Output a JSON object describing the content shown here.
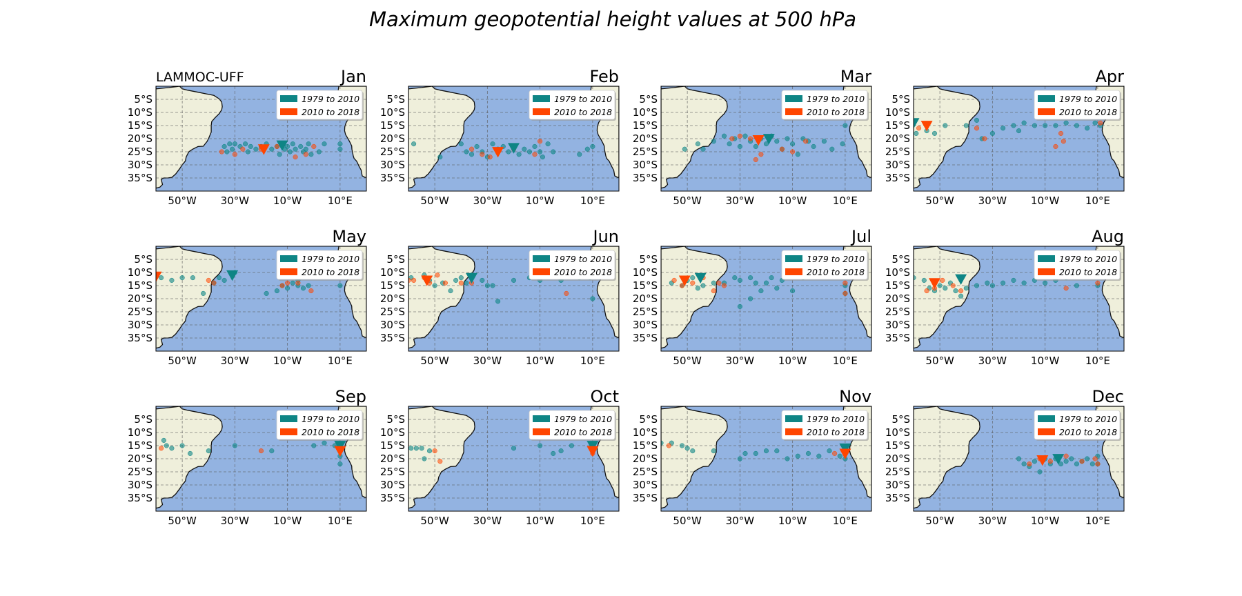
{
  "title": "Maximum geopotential height values at 500 hPa",
  "credit": "LAMMOC-UFF",
  "colors": {
    "ocean": "#93b3e1",
    "land": "#efefdb",
    "coast": "#111111",
    "grid": "#5a5a5a",
    "period1": "#0e8585",
    "period2": "#ff4500"
  },
  "legend": [
    {
      "label": "1979 to 2010",
      "color": "#0e8585"
    },
    {
      "label": "2010 to 2018",
      "color": "#ff4500"
    }
  ],
  "map_extent": {
    "lon": [
      -60,
      20
    ],
    "lat": [
      -40,
      0
    ]
  },
  "lon_ticks": [
    {
      "value": -50,
      "label": "50°W"
    },
    {
      "value": -30,
      "label": "30°W"
    },
    {
      "value": -10,
      "label": "10°W"
    },
    {
      "value": 10,
      "label": "10°E"
    }
  ],
  "lat_ticks": [
    {
      "value": -5,
      "label": "5°S"
    },
    {
      "value": -10,
      "label": "10°S"
    },
    {
      "value": -15,
      "label": "15°S"
    },
    {
      "value": -20,
      "label": "20°S"
    },
    {
      "value": -25,
      "label": "25°S"
    },
    {
      "value": -30,
      "label": "30°S"
    },
    {
      "value": -35,
      "label": "35°S"
    }
  ],
  "chart_data": [
    {
      "month": "Jan",
      "p1_points": [
        [
          -34,
          -23
        ],
        [
          -32,
          -22
        ],
        [
          -31,
          -24
        ],
        [
          -30,
          -22
        ],
        [
          -28,
          -23
        ],
        [
          -26,
          -22
        ],
        [
          -24,
          -23
        ],
        [
          -22,
          -24
        ],
        [
          -20,
          -23
        ],
        [
          -18,
          -22
        ],
        [
          -16,
          -24
        ],
        [
          -14,
          -23
        ],
        [
          -12,
          -22
        ],
        [
          -11,
          -24
        ],
        [
          -10,
          -23
        ],
        [
          -9,
          -25
        ],
        [
          -8,
          -22
        ],
        [
          -7,
          -24
        ],
        [
          -5,
          -23
        ],
        [
          -4,
          -25
        ],
        [
          -3,
          -24
        ],
        [
          -1,
          -26
        ],
        [
          -2,
          -22
        ],
        [
          2,
          -25
        ],
        [
          4,
          -22
        ],
        [
          10,
          -24
        ],
        [
          10,
          -22
        ],
        [
          -13,
          -26
        ],
        [
          -25,
          -25
        ],
        [
          -33,
          -25
        ]
      ],
      "p2_points": [
        [
          -35,
          -25
        ],
        [
          -30,
          -26
        ],
        [
          -27,
          -24
        ],
        [
          -20,
          -24
        ],
        [
          -14,
          -23
        ],
        [
          -7,
          -27
        ],
        [
          -3,
          -26
        ],
        [
          0,
          -23
        ]
      ],
      "p1_mean": [
        -12,
        -22.5
      ],
      "p2_mean": [
        -19,
        -24
      ]
    },
    {
      "month": "Feb",
      "p1_points": [
        [
          -58,
          -22
        ],
        [
          -48,
          -27
        ],
        [
          -40,
          -22
        ],
        [
          -38,
          -25
        ],
        [
          -36,
          -26
        ],
        [
          -34,
          -23
        ],
        [
          -32,
          -25
        ],
        [
          -30,
          -27
        ],
        [
          -28,
          -22
        ],
        [
          -26,
          -24
        ],
        [
          -24,
          -23
        ],
        [
          -22,
          -25
        ],
        [
          -20,
          -23
        ],
        [
          -18,
          -26
        ],
        [
          -16,
          -24
        ],
        [
          -14,
          -25
        ],
        [
          -12,
          -23
        ],
        [
          -10,
          -25
        ],
        [
          -9,
          -27
        ],
        [
          -7,
          -22
        ],
        [
          -5,
          -25
        ],
        [
          5,
          -26
        ],
        [
          8,
          -24
        ],
        [
          10,
          -23
        ]
      ],
      "p2_points": [
        [
          -36,
          -24
        ],
        [
          -32,
          -26
        ],
        [
          -29,
          -27
        ],
        [
          -26,
          -25
        ],
        [
          -20,
          -24
        ],
        [
          -10,
          -21
        ],
        [
          -12,
          -26
        ]
      ],
      "p1_mean": [
        -20,
        -23.5
      ],
      "p2_mean": [
        -26,
        -25
      ]
    },
    {
      "month": "Mar",
      "p1_points": [
        [
          -51,
          -24
        ],
        [
          -46,
          -22
        ],
        [
          -44,
          -24
        ],
        [
          -40,
          -21
        ],
        [
          -36,
          -19
        ],
        [
          -34,
          -22
        ],
        [
          -32,
          -20
        ],
        [
          -30,
          -23
        ],
        [
          -28,
          -19
        ],
        [
          -26,
          -21
        ],
        [
          -24,
          -23
        ],
        [
          -22,
          -20
        ],
        [
          -20,
          -22
        ],
        [
          -18,
          -19
        ],
        [
          -16,
          -21
        ],
        [
          -14,
          -24
        ],
        [
          -12,
          -20
        ],
        [
          -10,
          -22
        ],
        [
          -8,
          -26
        ],
        [
          -6,
          -20
        ],
        [
          -4,
          -21
        ],
        [
          -2,
          -23
        ],
        [
          2,
          -21
        ],
        [
          5,
          -24
        ],
        [
          9,
          -22
        ],
        [
          10,
          -15
        ]
      ],
      "p2_points": [
        [
          -33,
          -20
        ],
        [
          -30,
          -19
        ],
        [
          -26,
          -20
        ],
        [
          -24,
          -28
        ],
        [
          -22,
          -26
        ],
        [
          -14,
          -24
        ],
        [
          -10,
          -25
        ],
        [
          -5,
          -21
        ]
      ],
      "p1_mean": [
        -19,
        -20
      ],
      "p2_mean": [
        -23,
        -20.5
      ]
    },
    {
      "month": "Apr",
      "p1_points": [
        [
          -59,
          -18
        ],
        [
          -55,
          -17
        ],
        [
          -52,
          -18
        ],
        [
          -48,
          -15
        ],
        [
          -40,
          -15
        ],
        [
          -36,
          -13
        ],
        [
          -34,
          -20
        ],
        [
          -30,
          -18
        ],
        [
          -26,
          -16
        ],
        [
          -22,
          -15
        ],
        [
          -20,
          -17
        ],
        [
          -18,
          -14
        ],
        [
          -14,
          -15
        ],
        [
          -10,
          -15
        ],
        [
          -6,
          -15
        ],
        [
          -2,
          -14
        ],
        [
          2,
          -15
        ],
        [
          6,
          -16
        ],
        [
          9,
          -14
        ],
        [
          11,
          -15
        ]
      ],
      "p2_points": [
        [
          -58,
          -16
        ],
        [
          -36,
          -16
        ],
        [
          -33,
          -20
        ],
        [
          -6,
          -23
        ],
        [
          -3,
          -21
        ],
        [
          -4,
          -18
        ],
        [
          11,
          -14
        ]
      ],
      "p1_mean": [
        -60,
        -14
      ],
      "p2_mean": [
        -55,
        -15
      ]
    },
    {
      "month": "May",
      "p1_points": [
        [
          -58,
          -12
        ],
        [
          -54,
          -13
        ],
        [
          -50,
          -12
        ],
        [
          -46,
          -12
        ],
        [
          -42,
          -18
        ],
        [
          -38,
          -14
        ],
        [
          -36,
          -12
        ],
        [
          -34,
          -13
        ],
        [
          -30,
          -10
        ],
        [
          -18,
          -18
        ],
        [
          -14,
          -17
        ],
        [
          -12,
          -15
        ],
        [
          -10,
          -16
        ],
        [
          -8,
          -14
        ],
        [
          -6,
          -15
        ],
        [
          -4,
          -16
        ],
        [
          -6,
          -13
        ],
        [
          -2,
          -15
        ],
        [
          10,
          -15
        ]
      ],
      "p2_points": [
        [
          -40,
          -13
        ],
        [
          -38,
          -14
        ],
        [
          -12,
          -15
        ],
        [
          -10,
          -14
        ],
        [
          -6,
          -14
        ],
        [
          -1,
          -17
        ]
      ],
      "p1_mean": [
        -31,
        -11
      ],
      "p2_mean": [
        -60,
        -11.5
      ]
    },
    {
      "month": "Jun",
      "p1_points": [
        [
          -59,
          -12
        ],
        [
          -54,
          -11
        ],
        [
          -52,
          -13
        ],
        [
          -50,
          -15
        ],
        [
          -47,
          -14
        ],
        [
          -44,
          -17
        ],
        [
          -42,
          -13
        ],
        [
          -40,
          -12
        ],
        [
          -38,
          -14
        ],
        [
          -36,
          -11
        ],
        [
          -32,
          -13
        ],
        [
          -30,
          -15
        ],
        [
          -28,
          -15
        ],
        [
          -26,
          -21
        ],
        [
          -20,
          -13
        ],
        [
          -14,
          -12
        ],
        [
          -10,
          -13
        ],
        [
          -2,
          -13
        ],
        [
          5,
          -12
        ],
        [
          9,
          -12
        ],
        [
          10,
          -20
        ]
      ],
      "p2_points": [
        [
          -60,
          -13
        ],
        [
          -58,
          -13
        ],
        [
          -54,
          -12
        ],
        [
          -52,
          -14
        ],
        [
          -49,
          -11
        ],
        [
          -46,
          -14
        ],
        [
          -40,
          -14
        ],
        [
          -36,
          -14
        ],
        [
          0,
          -18
        ]
      ],
      "p1_mean": [
        -36,
        -12
      ],
      "p2_mean": [
        -53,
        -13
      ]
    },
    {
      "month": "Jul",
      "p1_points": [
        [
          -56,
          -14
        ],
        [
          -52,
          -15
        ],
        [
          -50,
          -13
        ],
        [
          -48,
          -12
        ],
        [
          -46,
          -16
        ],
        [
          -44,
          -15
        ],
        [
          -40,
          -14
        ],
        [
          -36,
          -14
        ],
        [
          -32,
          -12
        ],
        [
          -30,
          -13
        ],
        [
          -26,
          -12
        ],
        [
          -24,
          -14
        ],
        [
          -22,
          -17
        ],
        [
          -20,
          -14
        ],
        [
          -18,
          -12
        ],
        [
          -16,
          -16
        ],
        [
          -14,
          -13
        ],
        [
          -30,
          -23
        ],
        [
          -26,
          -20
        ],
        [
          -10,
          -17
        ],
        [
          -6,
          -12
        ],
        [
          10,
          -15
        ],
        [
          10,
          -18
        ]
      ],
      "p2_points": [
        [
          -55,
          -13
        ],
        [
          -52,
          -15
        ],
        [
          -48,
          -14
        ],
        [
          -44,
          -12
        ],
        [
          -40,
          -17
        ],
        [
          -38,
          -14
        ],
        [
          -36,
          -15
        ],
        [
          10,
          -14
        ],
        [
          10,
          -18
        ]
      ],
      "p1_mean": [
        -45,
        -12
      ],
      "p2_mean": [
        -51,
        -13
      ]
    },
    {
      "month": "Aug",
      "p1_points": [
        [
          -60,
          -12
        ],
        [
          -56,
          -13
        ],
        [
          -54,
          -16
        ],
        [
          -52,
          -17
        ],
        [
          -50,
          -15
        ],
        [
          -48,
          -16
        ],
        [
          -46,
          -14
        ],
        [
          -44,
          -17
        ],
        [
          -42,
          -19
        ],
        [
          -40,
          -16
        ],
        [
          -36,
          -15
        ],
        [
          -32,
          -14
        ],
        [
          -30,
          -15
        ],
        [
          -26,
          -14
        ],
        [
          -22,
          -13
        ],
        [
          -18,
          -14
        ],
        [
          -14,
          -13
        ],
        [
          -10,
          -14
        ],
        [
          -6,
          -13
        ],
        [
          -2,
          -12
        ],
        [
          2,
          -15
        ],
        [
          10,
          -15
        ]
      ],
      "p2_points": [
        [
          -55,
          -17
        ],
        [
          -52,
          -16
        ],
        [
          -49,
          -13
        ],
        [
          -45,
          -15
        ],
        [
          -42,
          -17
        ],
        [
          -2,
          -16
        ],
        [
          10,
          -14
        ]
      ],
      "p1_mean": [
        -42,
        -12.5
      ],
      "p2_mean": [
        -52,
        -14
      ]
    },
    {
      "month": "Sep",
      "p1_points": [
        [
          -57,
          -13
        ],
        [
          -56,
          -15
        ],
        [
          -54,
          -16
        ],
        [
          -50,
          -15
        ],
        [
          -47,
          -18
        ],
        [
          -40,
          -17
        ],
        [
          -30,
          -15
        ],
        [
          -16,
          -17
        ],
        [
          0,
          -15
        ],
        [
          4,
          -14
        ],
        [
          8,
          -15
        ],
        [
          10,
          -19
        ],
        [
          10,
          -22
        ]
      ],
      "p2_points": [
        [
          -58,
          -16
        ],
        [
          -20,
          -17
        ],
        [
          10,
          -16
        ]
      ],
      "p1_mean": [
        10,
        -15
      ],
      "p2_mean": [
        10,
        -17
      ]
    },
    {
      "month": "Oct",
      "p1_points": [
        [
          -59,
          -16
        ],
        [
          -57,
          -16
        ],
        [
          -55,
          -16
        ],
        [
          -54,
          -20
        ],
        [
          -52,
          -17
        ],
        [
          -20,
          -16
        ],
        [
          -10,
          -15
        ],
        [
          -5,
          -18
        ],
        [
          -2,
          -17
        ],
        [
          2,
          -15
        ],
        [
          10,
          -16
        ]
      ],
      "p2_points": [
        [
          -50,
          -17
        ],
        [
          -48,
          -21
        ],
        [
          10,
          -18
        ]
      ],
      "p1_mean": [
        10,
        -15
      ],
      "p2_mean": [
        10,
        -17
      ]
    },
    {
      "month": "Nov",
      "p1_points": [
        [
          -60,
          -14
        ],
        [
          -56,
          -14
        ],
        [
          -52,
          -15
        ],
        [
          -50,
          -16
        ],
        [
          -48,
          -17
        ],
        [
          -40,
          -17
        ],
        [
          -30,
          -20
        ],
        [
          -28,
          -18
        ],
        [
          -24,
          -18
        ],
        [
          -20,
          -17
        ],
        [
          -16,
          -17
        ],
        [
          -12,
          -20
        ],
        [
          -8,
          -19
        ],
        [
          -4,
          -18
        ],
        [
          0,
          -19
        ],
        [
          4,
          -17
        ],
        [
          8,
          -19
        ],
        [
          10,
          -20
        ]
      ],
      "p2_points": [
        [
          -57,
          -15
        ],
        [
          6,
          -18
        ],
        [
          10,
          -17
        ]
      ],
      "p1_mean": [
        10,
        -16
      ],
      "p2_mean": [
        10,
        -18
      ]
    },
    {
      "month": "Dec",
      "p1_points": [
        [
          -20,
          -20
        ],
        [
          -18,
          -22
        ],
        [
          -16,
          -23
        ],
        [
          -14,
          -21
        ],
        [
          -12,
          -25
        ],
        [
          -10,
          -20
        ],
        [
          -8,
          -22
        ],
        [
          -6,
          -20
        ],
        [
          -4,
          -22
        ],
        [
          -2,
          -21
        ],
        [
          0,
          -20
        ],
        [
          2,
          -22
        ],
        [
          4,
          -21
        ],
        [
          6,
          -20
        ],
        [
          8,
          -22
        ],
        [
          10,
          -19
        ],
        [
          10,
          -22
        ]
      ],
      "p2_points": [
        [
          -16,
          -22
        ],
        [
          -12,
          -20
        ],
        [
          -8,
          -21
        ],
        [
          -2,
          -19
        ],
        [
          4,
          -21
        ],
        [
          9,
          -20
        ],
        [
          10,
          -22
        ]
      ],
      "p1_mean": [
        -5,
        -20
      ],
      "p2_mean": [
        -11,
        -20.5
      ]
    }
  ]
}
